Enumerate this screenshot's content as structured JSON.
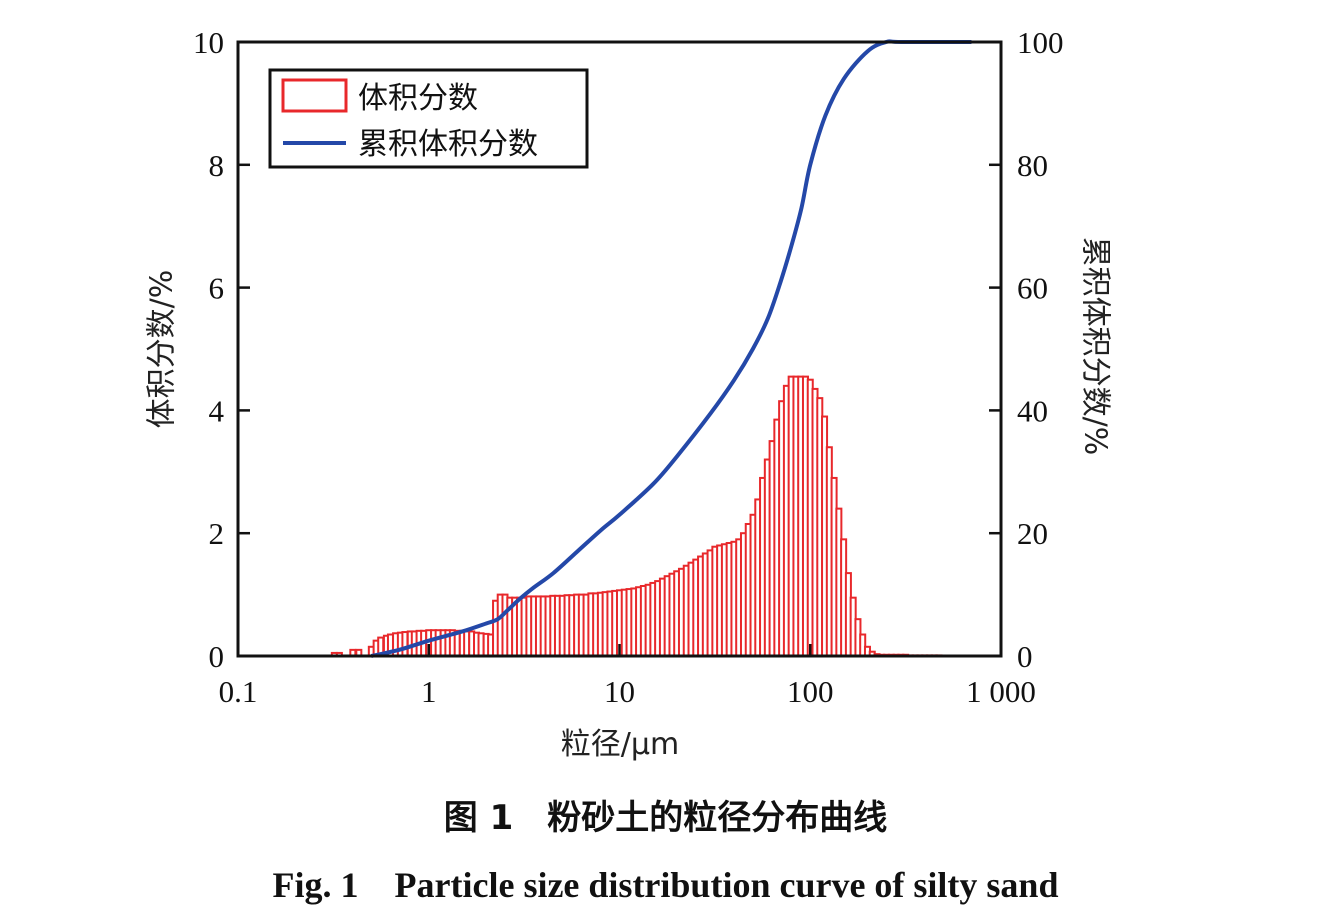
{
  "chart_data": {
    "type": "bar",
    "xlabel": "粒径/μm",
    "ylabel": "体积分数/%",
    "y2label": "累积体积分数/%",
    "x_scale": "log",
    "xlim": [
      0.1,
      1000
    ],
    "ylim": [
      0,
      10
    ],
    "y2lim": [
      0,
      100
    ],
    "x_ticks": [
      0.1,
      1,
      10,
      100,
      1000
    ],
    "x_tick_labels": [
      "0.1",
      "1",
      "10",
      "100",
      "1 000"
    ],
    "y_ticks": [
      0,
      2,
      4,
      6,
      8,
      10
    ],
    "y_tick_labels": [
      "0",
      "2",
      "4",
      "6",
      "8",
      "10"
    ],
    "y2_ticks": [
      0,
      20,
      40,
      60,
      80,
      100
    ],
    "y2_tick_labels": [
      "0",
      "20",
      "40",
      "60",
      "80",
      "100"
    ],
    "legend_position": "top-left",
    "grid": false,
    "colors": {
      "bars": "#e8282b",
      "cumulative": "#2448a8"
    },
    "series": [
      {
        "name": "体积分数",
        "kind": "bar",
        "axis": "left",
        "x": [
          0.32,
          0.34,
          0.36,
          0.38,
          0.4,
          0.43,
          0.45,
          0.48,
          0.5,
          0.53,
          0.56,
          0.6,
          0.63,
          0.67,
          0.71,
          0.75,
          0.8,
          0.84,
          0.89,
          0.94,
          1.0,
          1.06,
          1.12,
          1.19,
          1.26,
          1.33,
          1.41,
          1.5,
          1.58,
          1.68,
          1.78,
          1.88,
          2.0,
          2.11,
          2.24,
          2.37,
          2.51,
          2.66,
          2.82,
          2.99,
          3.16,
          3.35,
          3.55,
          3.76,
          3.98,
          4.22,
          4.47,
          4.73,
          5.01,
          5.31,
          5.62,
          5.96,
          6.31,
          6.68,
          7.08,
          7.5,
          7.94,
          8.41,
          8.91,
          9.44,
          10.0,
          10.59,
          11.22,
          11.89,
          12.59,
          13.34,
          14.13,
          14.96,
          15.85,
          16.79,
          17.78,
          18.84,
          19.95,
          21.13,
          22.39,
          23.71,
          25.12,
          26.61,
          28.18,
          29.85,
          31.62,
          33.5,
          35.48,
          37.58,
          39.81,
          42.17,
          44.67,
          47.32,
          50.12,
          53.09,
          56.23,
          59.57,
          63.1,
          66.83,
          70.79,
          74.99,
          79.43,
          84.14,
          89.13,
          94.41,
          100.0,
          105.93,
          112.2,
          118.85,
          125.89,
          133.35,
          141.25,
          149.62,
          158.49,
          167.88,
          177.83,
          188.36,
          199.53,
          211.35,
          223.87,
          237.14,
          251.19,
          266.07,
          281.84,
          298.54,
          316.23,
          334.97,
          354.81,
          375.84,
          398.11,
          421.7,
          446.68,
          473.15
        ],
        "values": [
          0.05,
          0.05,
          0.0,
          0.0,
          0.1,
          0.1,
          0.0,
          0.0,
          0.15,
          0.25,
          0.3,
          0.33,
          0.35,
          0.37,
          0.38,
          0.39,
          0.4,
          0.4,
          0.41,
          0.41,
          0.42,
          0.42,
          0.42,
          0.42,
          0.42,
          0.42,
          0.41,
          0.41,
          0.4,
          0.4,
          0.38,
          0.37,
          0.36,
          0.35,
          0.9,
          1.0,
          1.0,
          0.95,
          0.95,
          0.95,
          0.95,
          0.97,
          0.97,
          0.97,
          0.97,
          0.97,
          0.98,
          0.98,
          0.98,
          0.99,
          0.99,
          1.0,
          1.0,
          1.0,
          1.02,
          1.02,
          1.03,
          1.04,
          1.05,
          1.06,
          1.07,
          1.08,
          1.09,
          1.1,
          1.12,
          1.14,
          1.16,
          1.19,
          1.22,
          1.26,
          1.3,
          1.34,
          1.38,
          1.42,
          1.47,
          1.52,
          1.57,
          1.62,
          1.67,
          1.72,
          1.78,
          1.8,
          1.82,
          1.84,
          1.86,
          1.9,
          2.0,
          2.15,
          2.3,
          2.55,
          2.9,
          3.2,
          3.5,
          3.85,
          4.15,
          4.4,
          4.55,
          4.55,
          4.55,
          4.55,
          4.5,
          4.35,
          4.2,
          3.9,
          3.4,
          2.9,
          2.4,
          1.9,
          1.35,
          0.95,
          0.6,
          0.35,
          0.15,
          0.07,
          0.03,
          0.02,
          0.02,
          0.02,
          0.02,
          0.02,
          0.02,
          0.01,
          0.01,
          0.01,
          0.01,
          0.01,
          0.01,
          0.01
        ]
      },
      {
        "name": "累积体积分数",
        "kind": "line",
        "axis": "right",
        "x": [
          0.5,
          0.7,
          1.0,
          1.5,
          2.0,
          2.3,
          2.6,
          3.0,
          3.5,
          4.5,
          6.0,
          8.0,
          10.0,
          15.0,
          20.0,
          30.0,
          40.0,
          50.0,
          60.0,
          70.0,
          80.0,
          90.0,
          100.0,
          120.0,
          150.0,
          200.0,
          250.0,
          300.0,
          700.0
        ],
        "values": [
          0.0,
          1.0,
          2.5,
          4.0,
          5.3,
          6.0,
          7.5,
          9.3,
          11.0,
          13.5,
          17.0,
          20.5,
          23.0,
          28.0,
          32.5,
          39.5,
          45.0,
          50.0,
          55.0,
          61.0,
          67.0,
          73.0,
          80.0,
          88.0,
          94.0,
          98.5,
          100.0,
          100.0,
          100.0
        ]
      }
    ]
  },
  "caption": {
    "chinese": "图 1　粉砂土的粒径分布曲线",
    "english": "Fig. 1　Particle size distribution curve of silty sand"
  }
}
